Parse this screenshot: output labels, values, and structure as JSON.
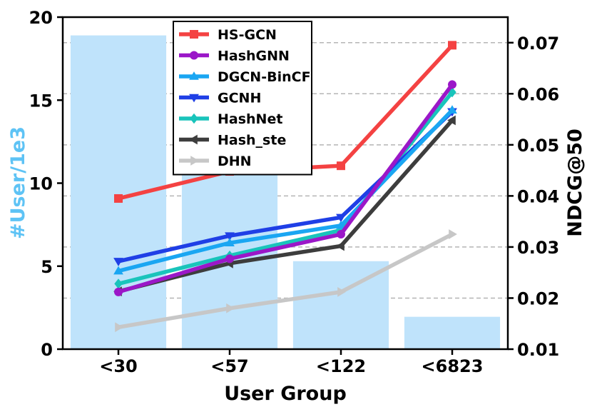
{
  "chart_data": {
    "type": "bar",
    "xlabel": "User Group",
    "ylabel_left": "#User/1e3",
    "ylabel_right": "NDCG@50",
    "categories": [
      "<30",
      "<57",
      "<122",
      "<6823"
    ],
    "ylim_left": [
      0,
      20
    ],
    "yticks_left": [
      0,
      5,
      10,
      15,
      20
    ],
    "ylim_right": [
      0.01,
      0.075
    ],
    "yticks_right": [
      0.01,
      0.02,
      0.03,
      0.04,
      0.05,
      0.06,
      0.07
    ],
    "grid": "horizontal dashed (right axis)",
    "legend_position": "top-left",
    "bars": {
      "values": [
        18.9,
        10.55,
        5.3,
        1.95
      ],
      "color": "#bfe3fb"
    },
    "series": [
      {
        "name": "HS-GCN",
        "values": [
          0.0395,
          0.0448,
          0.0459,
          0.0695
        ],
        "color": "#f44242",
        "marker": "square"
      },
      {
        "name": "HashGNN",
        "values": [
          0.0212,
          0.0277,
          0.0325,
          0.0618
        ],
        "color": "#9b17c8",
        "marker": "circle"
      },
      {
        "name": "DGCN-BinCF",
        "values": [
          0.0253,
          0.0308,
          0.0342,
          0.0568
        ],
        "color": "#1aa6f2",
        "marker": "triangle-up"
      },
      {
        "name": "GCNH",
        "values": [
          0.0272,
          0.0322,
          0.0358,
          0.0565
        ],
        "color": "#1f3fe6",
        "marker": "triangle-down"
      },
      {
        "name": "HashNet",
        "values": [
          0.0228,
          0.0283,
          0.0333,
          0.0603
        ],
        "color": "#19c4bb",
        "marker": "diamond"
      },
      {
        "name": "Hash_ste",
        "values": [
          0.0213,
          0.0268,
          0.0302,
          0.0548
        ],
        "color": "#3d3d3d",
        "marker": "triangle-left"
      },
      {
        "name": "DHN",
        "values": [
          0.0143,
          0.018,
          0.0212,
          0.0325
        ],
        "color": "#c7c7c7",
        "marker": "triangle-right"
      }
    ]
  }
}
